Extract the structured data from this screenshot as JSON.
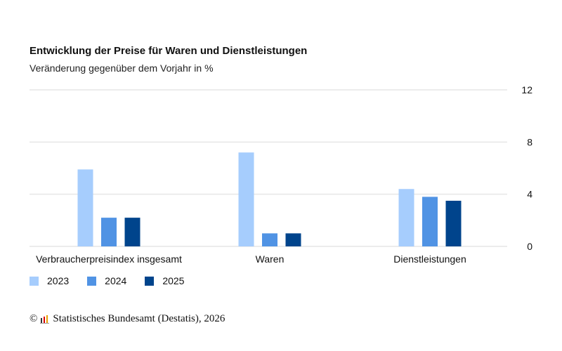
{
  "chart_data": {
    "type": "bar",
    "title": "Entwicklung der Preise für Waren und Dienstleistungen",
    "subtitle": "Veränderung gegenüber dem Vorjahr in %",
    "categories": [
      "Verbraucherpreisindex insgesamt",
      "Waren",
      "Dienstleistungen"
    ],
    "series": [
      {
        "name": "2023",
        "color": "#a6cdfd",
        "values": [
          5.9,
          7.2,
          4.4
        ]
      },
      {
        "name": "2024",
        "color": "#5093e4",
        "values": [
          2.2,
          1.0,
          3.8
        ]
      },
      {
        "name": "2025",
        "color": "#00448c",
        "values": [
          2.2,
          1.0,
          3.5
        ]
      }
    ],
    "ylim": [
      0,
      12
    ],
    "yticks": [
      "0",
      "4",
      "8",
      "12"
    ],
    "yaxis_position": "right",
    "grid": true,
    "legend": "bottom-left"
  },
  "source": "Statistisches Bundesamt (Destatis), 2026",
  "copyright_symbol": "©"
}
